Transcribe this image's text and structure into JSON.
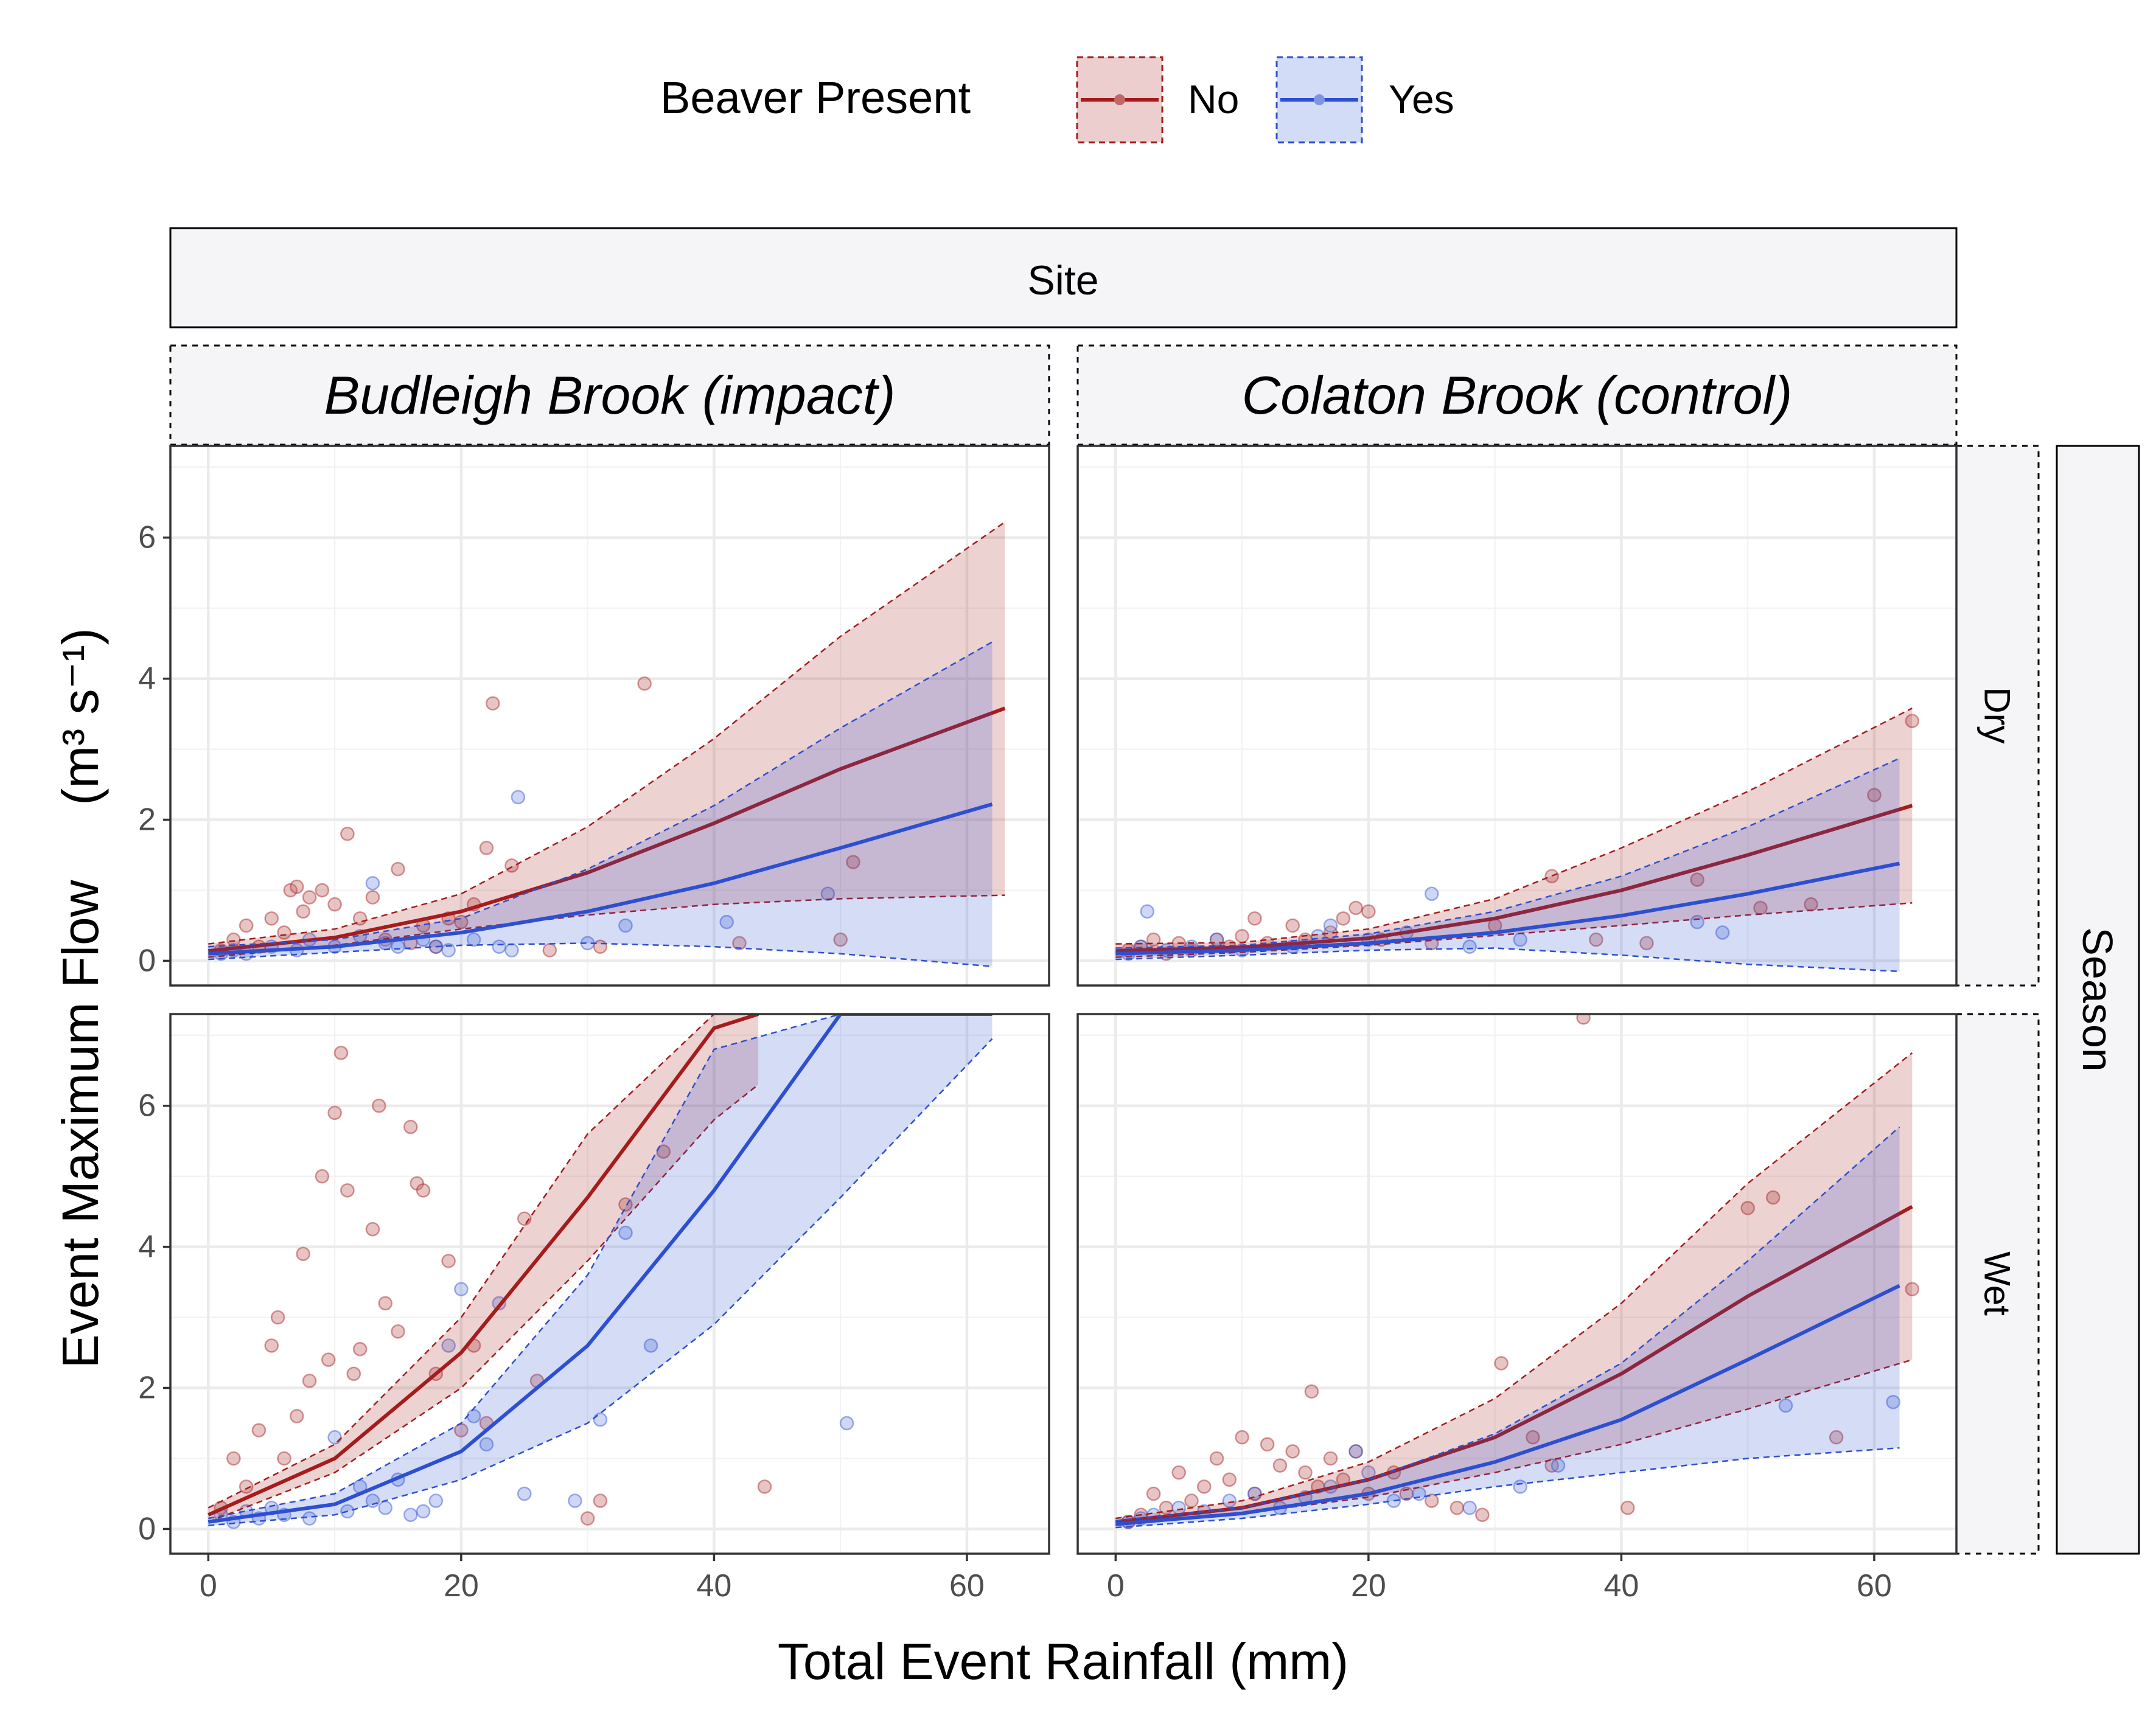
{
  "legend": {
    "title": "Beaver Present",
    "entries": [
      {
        "label": "No",
        "color": "#a51c1c",
        "fill": "rgba(165,28,28,0.2)",
        "point": "#c26666"
      },
      {
        "label": "Yes",
        "color": "#2d4fd1",
        "fill": "rgba(45,79,209,0.2)",
        "point": "#7f95e4"
      }
    ]
  },
  "strips": {
    "top": "Site",
    "right": "Season",
    "columns": [
      "Budleigh Brook (impact)",
      "Colaton Brook (control)"
    ],
    "rows": [
      "Dry",
      "Wet"
    ]
  },
  "axes": {
    "xlabel": "Total Event Rainfall   (mm)",
    "ylabel_main": "Event Maximum Flow",
    "ylabel_unit": "(m³ s⁻¹)",
    "xticks": [
      0,
      20,
      40,
      60
    ],
    "yticks": [
      0,
      2,
      4,
      6
    ],
    "xlim": [
      -3,
      66.5
    ],
    "ylim": [
      -0.35,
      7.3
    ]
  },
  "chart_data": {
    "type": "scatter",
    "title": "",
    "xlabel": "Total Event Rainfall (mm)",
    "ylabel": "Event Maximum Flow (m3 s-1)",
    "xlim": [
      -3,
      66.5
    ],
    "ylim": [
      -0.35,
      7.3
    ],
    "grid": true,
    "legend_position": "top",
    "facets": [
      {
        "site": "Budleigh Brook (impact)",
        "season": "Dry",
        "fits": [
          {
            "series": "No",
            "x": [
              0,
              10,
              20,
              30,
              40,
              50,
              63
            ],
            "fit": [
              0.14,
              0.33,
              0.7,
              1.25,
              1.95,
              2.72,
              3.58
            ],
            "lower": [
              0.05,
              0.22,
              0.45,
              0.65,
              0.8,
              0.88,
              0.93
            ],
            "upper": [
              0.24,
              0.45,
              0.95,
              1.9,
              3.15,
              4.6,
              6.22
            ]
          },
          {
            "series": "Yes",
            "x": [
              0,
              10,
              20,
              30,
              40,
              50,
              62
            ],
            "fit": [
              0.1,
              0.2,
              0.4,
              0.7,
              1.1,
              1.6,
              2.22
            ],
            "lower": [
              0.02,
              0.12,
              0.22,
              0.25,
              0.2,
              0.1,
              -0.08
            ],
            "upper": [
              0.2,
              0.3,
              0.6,
              1.3,
              2.2,
              3.3,
              4.52
            ]
          }
        ],
        "points": [
          {
            "series": "No",
            "x": [
              1,
              2,
              3,
              4,
              5,
              6,
              6.5,
              7,
              7.5,
              8,
              9,
              10,
              11,
              12,
              13,
              14,
              15,
              16,
              17,
              18,
              19,
              20,
              21,
              22,
              22.5,
              24,
              27,
              31,
              34.5,
              42,
              50,
              51
            ],
            "y": [
              0.15,
              0.3,
              0.5,
              0.2,
              0.6,
              0.4,
              1.0,
              1.05,
              0.7,
              0.9,
              1.0,
              0.8,
              1.8,
              0.6,
              0.9,
              0.3,
              1.3,
              0.25,
              0.5,
              0.2,
              0.6,
              0.55,
              0.8,
              1.6,
              3.65,
              1.35,
              0.15,
              0.2,
              3.93,
              0.25,
              0.3,
              1.4
            ]
          },
          {
            "series": "Yes",
            "x": [
              1,
              2,
              3,
              5,
              7,
              8,
              10,
              12,
              13,
              14,
              15,
              17,
              18,
              19,
              21,
              23,
              24,
              24.5,
              30,
              33,
              41,
              49
            ],
            "y": [
              0.1,
              0.15,
              0.1,
              0.2,
              0.15,
              0.3,
              0.2,
              0.35,
              1.1,
              0.25,
              0.2,
              0.3,
              0.2,
              0.15,
              0.3,
              0.2,
              0.15,
              2.32,
              0.25,
              0.5,
              0.55,
              0.95
            ]
          }
        ]
      },
      {
        "site": "Colaton Brook (control)",
        "season": "Dry",
        "fits": [
          {
            "series": "No",
            "x": [
              0,
              10,
              20,
              30,
              40,
              50,
              63
            ],
            "fit": [
              0.14,
              0.19,
              0.32,
              0.6,
              1.0,
              1.5,
              2.2
            ],
            "lower": [
              0.05,
              0.12,
              0.22,
              0.36,
              0.5,
              0.65,
              0.82
            ],
            "upper": [
              0.24,
              0.26,
              0.45,
              0.88,
              1.6,
              2.4,
              3.58
            ]
          },
          {
            "series": "Yes",
            "x": [
              0,
              10,
              20,
              30,
              40,
              50,
              62
            ],
            "fit": [
              0.1,
              0.15,
              0.25,
              0.4,
              0.64,
              0.95,
              1.38
            ],
            "lower": [
              0.02,
              0.08,
              0.15,
              0.18,
              0.08,
              -0.05,
              -0.15
            ],
            "upper": [
              0.18,
              0.22,
              0.38,
              0.7,
              1.2,
              1.9,
              2.87
            ]
          }
        ],
        "points": [
          {
            "series": "No",
            "x": [
              1,
              2,
              3,
              4,
              5,
              6,
              8,
              9,
              10,
              11,
              12,
              14,
              15,
              17,
              18,
              19,
              20,
              21,
              25,
              30,
              34.5,
              38,
              42,
              46,
              51,
              55,
              60,
              63
            ],
            "y": [
              0.15,
              0.2,
              0.3,
              0.1,
              0.25,
              0.15,
              0.3,
              0.2,
              0.35,
              0.6,
              0.25,
              0.5,
              0.3,
              0.4,
              0.6,
              0.75,
              0.7,
              0.3,
              0.25,
              0.5,
              1.2,
              0.3,
              0.25,
              1.15,
              0.75,
              0.8,
              2.35,
              3.4
            ]
          },
          {
            "series": "Yes",
            "x": [
              1,
              2,
              2.5,
              4,
              6,
              8,
              10,
              14,
              16,
              17,
              20,
              23,
              25,
              28,
              32,
              46,
              48
            ],
            "y": [
              0.1,
              0.2,
              0.7,
              0.15,
              0.2,
              0.3,
              0.15,
              0.2,
              0.35,
              0.5,
              0.3,
              0.4,
              0.95,
              0.2,
              0.3,
              0.55,
              0.4
            ]
          }
        ]
      },
      {
        "site": "Budleigh Brook (impact)",
        "season": "Wet",
        "fits": [
          {
            "series": "No",
            "x": [
              0,
              10,
              20,
              30,
              40,
              43.5
            ],
            "fit": [
              0.2,
              1.0,
              2.5,
              4.7,
              7.1,
              7.3
            ],
            "lower": [
              0.1,
              0.8,
              2.0,
              3.8,
              5.8,
              6.3
            ],
            "upper": [
              0.3,
              1.2,
              3.0,
              5.6,
              7.3,
              7.3
            ]
          },
          {
            "series": "Yes",
            "x": [
              0,
              10,
              20,
              30,
              40,
              50,
              62
            ],
            "fit": [
              0.1,
              0.35,
              1.1,
              2.6,
              4.8,
              7.3,
              7.3
            ],
            "lower": [
              0.05,
              0.2,
              0.7,
              1.5,
              2.9,
              4.7,
              6.95
            ],
            "upper": [
              0.15,
              0.5,
              1.5,
              3.6,
              6.8,
              7.3,
              7.3
            ]
          }
        ],
        "points": [
          {
            "series": "No",
            "x": [
              1,
              2,
              3,
              4,
              5,
              5.5,
              6,
              7,
              7.5,
              8,
              9,
              9.5,
              10,
              10.5,
              11,
              11.5,
              12,
              13,
              13.5,
              14,
              15,
              16,
              16.5,
              17,
              18,
              19,
              20,
              21,
              22,
              25,
              26,
              30,
              31,
              33,
              36,
              44
            ],
            "y": [
              0.3,
              1.0,
              0.6,
              1.4,
              2.6,
              3.0,
              1.0,
              1.6,
              3.9,
              2.1,
              5.0,
              2.4,
              5.9,
              6.75,
              4.8,
              2.2,
              2.55,
              4.25,
              6.0,
              3.2,
              2.8,
              5.7,
              4.9,
              4.8,
              2.2,
              3.8,
              1.4,
              2.6,
              1.5,
              4.4,
              2.1,
              0.15,
              0.4,
              4.6,
              5.35,
              0.6
            ]
          },
          {
            "series": "Yes",
            "x": [
              1,
              2,
              3,
              4,
              5,
              6,
              8,
              10,
              11,
              12,
              13,
              14,
              15,
              16,
              17,
              18,
              19,
              20,
              21,
              22,
              23,
              25,
              29,
              31,
              33,
              35,
              50.5
            ],
            "y": [
              0.2,
              0.1,
              0.25,
              0.15,
              0.3,
              0.2,
              0.15,
              1.3,
              0.25,
              0.6,
              0.4,
              0.3,
              0.7,
              0.2,
              0.25,
              0.4,
              2.6,
              3.4,
              1.6,
              1.2,
              3.2,
              0.5,
              0.4,
              1.55,
              4.2,
              2.6,
              1.5
            ]
          }
        ]
      },
      {
        "site": "Colaton Brook (control)",
        "season": "Wet",
        "fits": [
          {
            "series": "No",
            "x": [
              0,
              10,
              20,
              30,
              40,
              50,
              63
            ],
            "fit": [
              0.1,
              0.3,
              0.7,
              1.3,
              2.2,
              3.3,
              4.57
            ],
            "lower": [
              0.05,
              0.22,
              0.45,
              0.8,
              1.2,
              1.7,
              2.4
            ],
            "upper": [
              0.15,
              0.4,
              0.95,
              1.85,
              3.2,
              4.9,
              6.75
            ]
          },
          {
            "series": "Yes",
            "x": [
              0,
              10,
              20,
              30,
              40,
              50,
              62
            ],
            "fit": [
              0.07,
              0.22,
              0.5,
              0.95,
              1.55,
              2.4,
              3.45
            ],
            "lower": [
              0.02,
              0.15,
              0.35,
              0.6,
              0.8,
              1.0,
              1.15
            ],
            "upper": [
              0.12,
              0.3,
              0.7,
              1.35,
              2.35,
              3.8,
              5.7
            ]
          }
        ],
        "points": [
          {
            "series": "No",
            "x": [
              1,
              2,
              3,
              4,
              5,
              6,
              7,
              8,
              9,
              10,
              11,
              12,
              13,
              14,
              15,
              15.5,
              16,
              17,
              18,
              19,
              20,
              22,
              23,
              25,
              27,
              29,
              30.5,
              33,
              34.5,
              37,
              40.5,
              50,
              52,
              57,
              63
            ],
            "y": [
              0.1,
              0.2,
              0.5,
              0.3,
              0.8,
              0.4,
              0.6,
              1.0,
              0.7,
              1.3,
              0.5,
              1.2,
              0.9,
              1.1,
              0.8,
              1.95,
              0.6,
              1.0,
              0.7,
              1.1,
              0.5,
              0.8,
              0.5,
              0.4,
              0.3,
              0.2,
              2.35,
              1.3,
              0.9,
              7.25,
              0.3,
              4.55,
              4.7,
              1.3,
              3.4
            ]
          },
          {
            "series": "Yes",
            "x": [
              1,
              2,
              3,
              5,
              7,
              9,
              11,
              13,
              15,
              17,
              19,
              20,
              22,
              24,
              28,
              32,
              35,
              53,
              61.5
            ],
            "y": [
              0.1,
              0.15,
              0.2,
              0.3,
              0.25,
              0.4,
              0.5,
              0.3,
              0.45,
              0.6,
              1.1,
              0.8,
              0.4,
              0.5,
              0.3,
              0.6,
              0.9,
              1.75,
              1.8
            ]
          }
        ]
      }
    ]
  }
}
